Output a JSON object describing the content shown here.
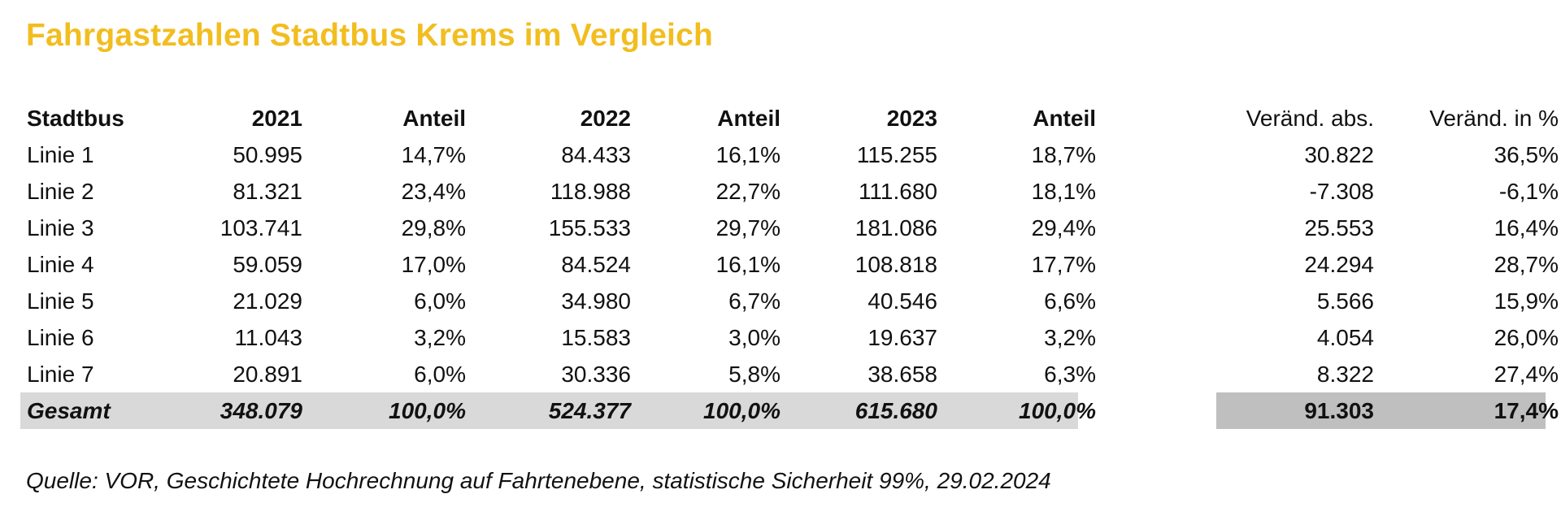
{
  "title": "Fahrgastzahlen Stadtbus Krems im Vergleich",
  "table": {
    "columns": [
      "Stadtbus",
      "2021",
      "Anteil",
      "2022",
      "Anteil",
      "2023",
      "Anteil",
      "Veränd. abs.",
      "Veränd. in %"
    ],
    "rows": [
      [
        "Linie 1",
        "50.995",
        "14,7%",
        "84.433",
        "16,1%",
        "115.255",
        "18,7%",
        "30.822",
        "36,5%"
      ],
      [
        "Linie 2",
        "81.321",
        "23,4%",
        "118.988",
        "22,7%",
        "111.680",
        "18,1%",
        "-7.308",
        "-6,1%"
      ],
      [
        "Linie 3",
        "103.741",
        "29,8%",
        "155.533",
        "29,7%",
        "181.086",
        "29,4%",
        "25.553",
        "16,4%"
      ],
      [
        "Linie 4",
        "59.059",
        "17,0%",
        "84.524",
        "16,1%",
        "108.818",
        "17,7%",
        "24.294",
        "28,7%"
      ],
      [
        "Linie 5",
        "21.029",
        "6,0%",
        "34.980",
        "6,7%",
        "40.546",
        "6,6%",
        "5.566",
        "15,9%"
      ],
      [
        "Linie 6",
        "11.043",
        "3,2%",
        "15.583",
        "3,0%",
        "19.637",
        "3,2%",
        "4.054",
        "26,0%"
      ],
      [
        "Linie 7",
        "20.891",
        "6,0%",
        "30.336",
        "5,8%",
        "38.658",
        "6,3%",
        "8.322",
        "27,4%"
      ]
    ],
    "total": [
      "Gesamt",
      "348.079",
      "100,0%",
      "524.377",
      "100,0%",
      "615.680",
      "100,0%",
      "91.303",
      "17,4%"
    ]
  },
  "source": "Quelle: VOR, Geschichtete Hochrechnung auf Fahrtenebene, statistische Sicherheit 99%, 29.02.2024",
  "colors": {
    "title": "#f2bd1f",
    "total_band_left": "#d9d9d9",
    "total_band_right": "#bfbfbf"
  }
}
